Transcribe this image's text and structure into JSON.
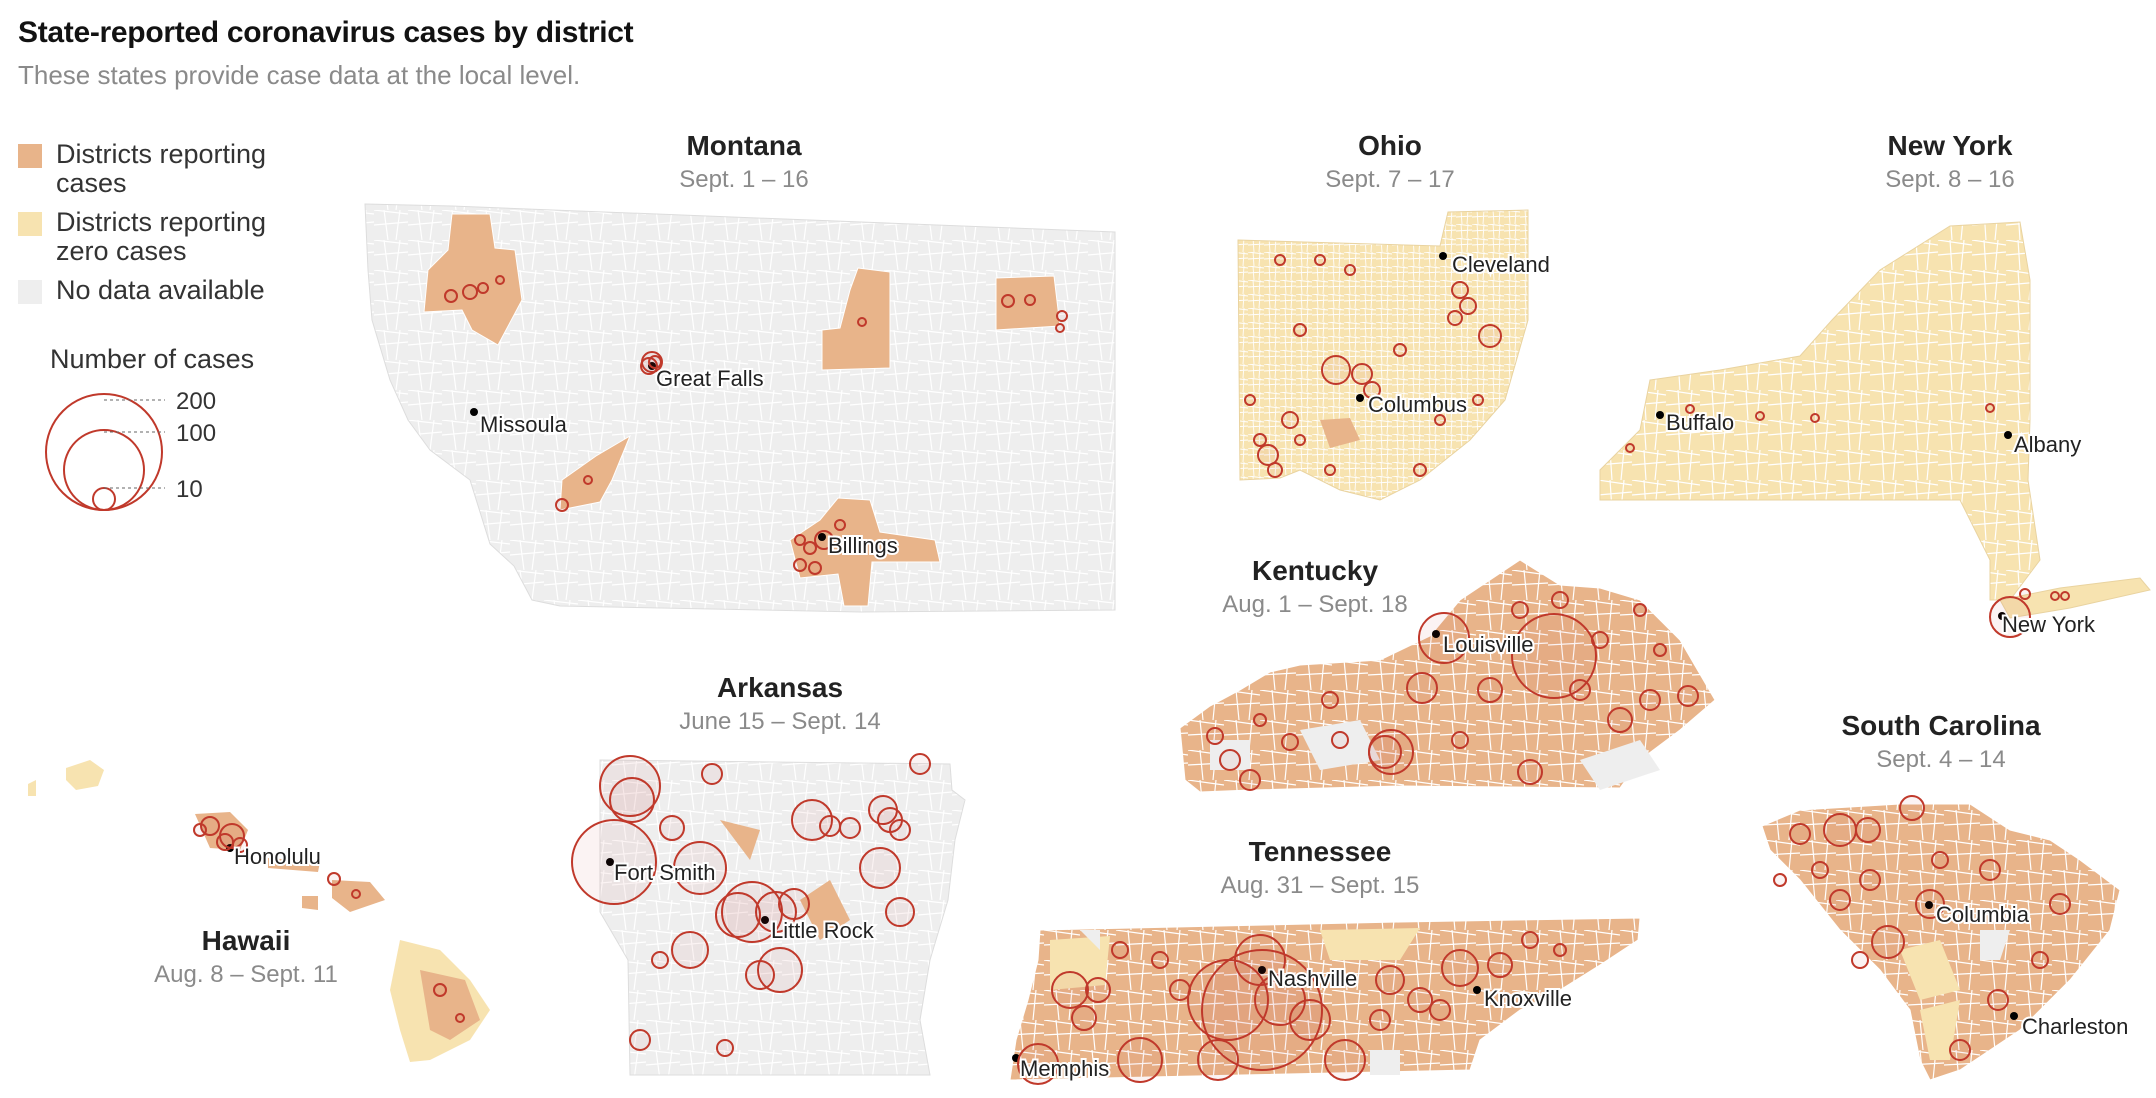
{
  "header": {
    "title": "State-reported coronavirus cases by district",
    "subtitle": "These states provide case data at the local level."
  },
  "legend": {
    "items": [
      {
        "label": "Districts reporting cases",
        "color": "#e8b48a"
      },
      {
        "label": "Districts reporting zero cases",
        "color": "#f7e3b0"
      },
      {
        "label": "No data available",
        "color": "#eeeeee"
      }
    ],
    "size_title": "Number of cases",
    "size_values": [
      "200",
      "100",
      "10"
    ],
    "circle_color": "#c0392b"
  },
  "states": {
    "montana": {
      "name": "Montana",
      "dates": "Sept. 1 – 16",
      "cities": [
        "Great Falls",
        "Missoula",
        "Billings"
      ]
    },
    "ohio": {
      "name": "Ohio",
      "dates": "Sept. 7 – 17",
      "cities": [
        "Cleveland",
        "Columbus"
      ]
    },
    "newyork": {
      "name": "New York",
      "dates": "Sept. 8 – 16",
      "cities": [
        "Buffalo",
        "Albany",
        "New York"
      ]
    },
    "kentucky": {
      "name": "Kentucky",
      "dates": "Aug. 1 – Sept. 18",
      "cities": [
        "Louisville"
      ]
    },
    "arkansas": {
      "name": "Arkansas",
      "dates": "June 15 – Sept. 14",
      "cities": [
        "Fort Smith",
        "Little Rock"
      ]
    },
    "hawaii": {
      "name": "Hawaii",
      "dates": "Aug. 8 – Sept. 11",
      "cities": [
        "Honolulu"
      ]
    },
    "tennessee": {
      "name": "Tennessee",
      "dates": "Aug. 31 – Sept. 15",
      "cities": [
        "Nashville",
        "Knoxville",
        "Memphis"
      ]
    },
    "southcarolina": {
      "name": "South Carolina",
      "dates": "Sept. 4 – 14",
      "cities": [
        "Columbia",
        "Charleston"
      ]
    }
  },
  "colors": {
    "cases": "#e8b48a",
    "zero": "#f7e3b0",
    "nodata": "#eeeeee",
    "circle": "#c0392b"
  }
}
